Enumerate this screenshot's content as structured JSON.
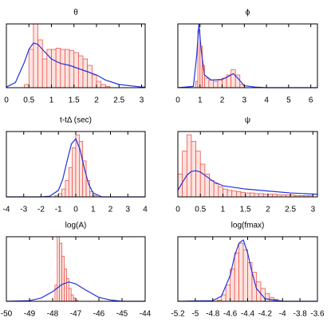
{
  "chart_data": [
    {
      "type": "histogram",
      "title": "θ",
      "xlim": [
        0,
        3.08
      ],
      "ylim": [
        0,
        1
      ],
      "xticks": [
        0,
        0.5,
        1,
        1.5,
        2,
        2.5,
        3
      ],
      "bins": [
        0.4,
        0.5,
        0.6,
        0.7,
        0.8,
        0.9,
        1.0,
        1.1,
        1.2,
        1.3,
        1.4,
        1.5,
        1.6,
        1.7,
        1.8,
        1.9,
        2.0,
        2.1,
        2.2,
        2.3
      ],
      "counts": [
        0.05,
        0.6,
        1.0,
        0.75,
        0.45,
        0.6,
        0.6,
        0.62,
        0.6,
        0.6,
        0.58,
        0.55,
        0.5,
        0.45,
        0.35,
        0.2,
        0.1,
        0.05,
        0.02
      ],
      "color": "#e8433a",
      "curve": {
        "color": "#2233dd",
        "x": [
          0,
          0.2,
          0.4,
          0.5,
          0.6,
          0.7,
          0.8,
          1.0,
          1.2,
          1.4,
          1.6,
          1.8,
          2.0,
          2.2,
          2.5,
          3.0,
          3.08
        ],
        "values": [
          0.01,
          0.08,
          0.4,
          0.6,
          0.7,
          0.68,
          0.6,
          0.45,
          0.38,
          0.35,
          0.3,
          0.25,
          0.2,
          0.12,
          0.05,
          0.01,
          0.01
        ]
      }
    },
    {
      "type": "histogram",
      "title": "ϕ",
      "xlim": [
        0,
        6.3
      ],
      "ylim": [
        0,
        1
      ],
      "xticks": [
        0,
        1,
        2,
        3,
        4,
        5,
        6
      ],
      "bins": [
        0.8,
        0.9,
        1.0,
        1.1,
        1.2,
        1.4,
        1.6,
        1.8,
        2.0,
        2.2,
        2.4,
        2.6,
        2.8,
        3.0
      ],
      "counts": [
        0.1,
        0.9,
        0.65,
        0.35,
        0.15,
        0.12,
        0.1,
        0.12,
        0.15,
        0.2,
        0.28,
        0.2,
        0.05
      ],
      "color": "#e8433a",
      "curve": {
        "color": "#2233dd",
        "x": [
          0,
          0.7,
          0.85,
          0.95,
          1.05,
          1.2,
          1.5,
          2.0,
          2.3,
          2.5,
          2.7,
          3.0,
          3.5,
          4,
          6.3
        ],
        "values": [
          0,
          0.02,
          0.5,
          1.0,
          0.6,
          0.2,
          0.12,
          0.13,
          0.18,
          0.22,
          0.15,
          0.03,
          0.01,
          0,
          0
        ]
      }
    },
    {
      "type": "histogram",
      "title": "t-tΔ (sec)",
      "xlim": [
        -4,
        4
      ],
      "ylim": [
        0,
        1
      ],
      "xticks": [
        -4,
        -3,
        -2,
        -1,
        0,
        1,
        2,
        3,
        4
      ],
      "bins": [
        -1.2,
        -1.0,
        -0.8,
        -0.6,
        -0.4,
        -0.2,
        0,
        0.2,
        0.4,
        0.6,
        0.8,
        1.0,
        1.2
      ],
      "counts": [
        0.02,
        0.05,
        0.12,
        0.25,
        0.45,
        0.75,
        0.95,
        0.85,
        0.55,
        0.25,
        0.08,
        0.02
      ],
      "color": "#e8433a",
      "curve": {
        "color": "#2233dd",
        "x": [
          -4,
          -2,
          -1.5,
          -1,
          -0.75,
          -0.5,
          -0.25,
          0,
          0.25,
          0.5,
          0.75,
          1,
          1.5,
          2,
          4
        ],
        "values": [
          0,
          0,
          0.01,
          0.1,
          0.27,
          0.55,
          0.81,
          0.89,
          0.72,
          0.43,
          0.19,
          0.06,
          0,
          0,
          0
        ]
      }
    },
    {
      "type": "histogram",
      "title": "ψ",
      "xlim": [
        0,
        3.1
      ],
      "ylim": [
        0,
        1
      ],
      "xticks": [
        0,
        0.5,
        1,
        1.5,
        2,
        2.5,
        3
      ],
      "bins": [
        0,
        0.1,
        0.2,
        0.3,
        0.4,
        0.5,
        0.6,
        0.7,
        0.8,
        0.9,
        1.0,
        1.1,
        1.2,
        1.3,
        1.4,
        1.5,
        1.6,
        1.7,
        1.8,
        1.9,
        2.0,
        2.1,
        2.2,
        2.3,
        2.4,
        2.5,
        2.6,
        2.7,
        2.8,
        2.9,
        3.0
      ],
      "counts": [
        0.35,
        0.7,
        0.95,
        0.85,
        0.7,
        0.5,
        0.35,
        0.25,
        0.2,
        0.15,
        0.12,
        0.1,
        0.09,
        0.08,
        0.07,
        0.06,
        0.06,
        0.05,
        0.05,
        0.04,
        0.04,
        0.04,
        0.03,
        0.03,
        0.03,
        0.03,
        0.02,
        0.02,
        0.02,
        0.02
      ],
      "color": "#e8433a",
      "curve": {
        "color": "#2233dd",
        "x": [
          0,
          0.1,
          0.2,
          0.3,
          0.4,
          0.5,
          0.6,
          0.8,
          1.0,
          1.5,
          2.0,
          2.5,
          3.1
        ],
        "values": [
          0.1,
          0.22,
          0.33,
          0.39,
          0.4,
          0.38,
          0.33,
          0.23,
          0.17,
          0.12,
          0.09,
          0.06,
          0.04
        ]
      }
    },
    {
      "type": "histogram",
      "title": "log(A)",
      "xlim": [
        -50,
        -44
      ],
      "ylim": [
        0,
        1
      ],
      "xticks": [
        -50,
        -49,
        -48,
        -47,
        -46,
        -45,
        -44
      ],
      "bins": [
        -47.9,
        -47.8,
        -47.7,
        -47.6,
        -47.5,
        -47.4,
        -47.3,
        -47.2,
        -47.1,
        -47.0,
        -46.9
      ],
      "counts": [
        0.25,
        1.0,
        0.9,
        0.7,
        0.5,
        0.35,
        0.2,
        0.1,
        0.05,
        0.02
      ],
      "color": "#e8433a",
      "curve": {
        "color": "#2233dd",
        "x": [
          -50,
          -49,
          -48.5,
          -48,
          -47.6,
          -47.3,
          -47,
          -46.6,
          -46,
          -45.5,
          -45,
          -44
        ],
        "values": [
          0,
          0.01,
          0.05,
          0.15,
          0.26,
          0.3,
          0.27,
          0.18,
          0.06,
          0.02,
          0,
          0
        ]
      }
    },
    {
      "type": "histogram",
      "title": "log(fmax)",
      "xlim": [
        -5.2,
        -3.6
      ],
      "ylim": [
        0,
        1
      ],
      "xticks": [
        -5.2,
        -5,
        -4.8,
        -4.6,
        -4.4,
        -4.2,
        -4,
        -3.8,
        -3.6
      ],
      "bins": [
        -4.75,
        -4.7,
        -4.65,
        -4.6,
        -4.55,
        -4.5,
        -4.45,
        -4.4,
        -4.35,
        -4.3,
        -4.25,
        -4.2,
        -4.15,
        -4.1,
        -4.05,
        -4.0
      ],
      "counts": [
        0.02,
        0.1,
        0.25,
        0.5,
        0.75,
        0.9,
        0.8,
        0.6,
        0.45,
        0.3,
        0.2,
        0.12,
        0.06,
        0.03,
        0.01
      ],
      "color": "#e8433a",
      "curve": {
        "color": "#2233dd",
        "x": [
          -5.2,
          -4.8,
          -4.7,
          -4.6,
          -4.55,
          -4.5,
          -4.45,
          -4.4,
          -4.35,
          -4.3,
          -4.2,
          -4.0,
          -3.6
        ],
        "values": [
          0,
          0.01,
          0.08,
          0.4,
          0.7,
          0.9,
          0.95,
          0.75,
          0.45,
          0.2,
          0.04,
          0,
          0
        ]
      }
    }
  ]
}
